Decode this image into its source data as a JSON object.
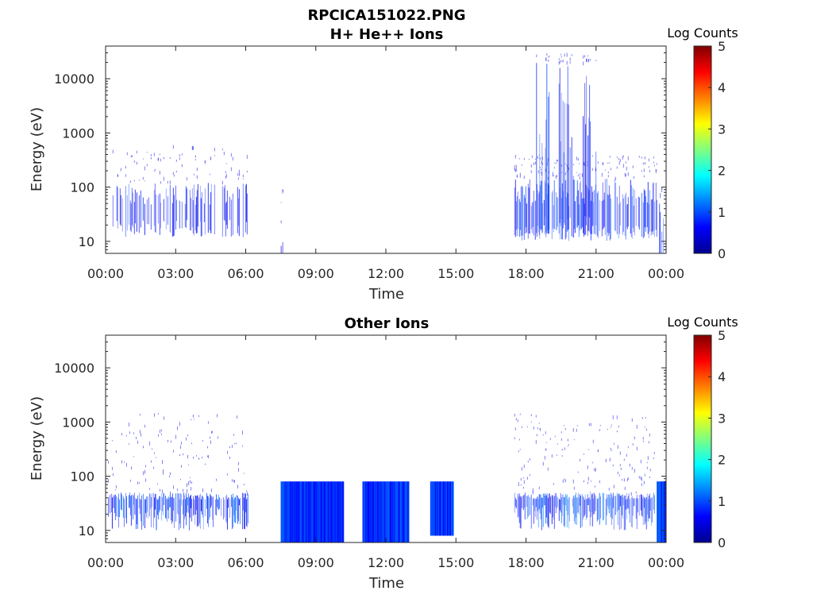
{
  "figure": {
    "title": "RPCICA151022.PNG"
  },
  "chart_data": [
    {
      "type": "heatmap",
      "title": "H+ He++ Ions",
      "xlabel": "Time",
      "ylabel": "Energy (eV)",
      "x_ticks": [
        "00:00",
        "03:00",
        "06:00",
        "09:00",
        "12:00",
        "15:00",
        "18:00",
        "21:00",
        "00:00"
      ],
      "x_range_hours": [
        0,
        24
      ],
      "y_scale": "log",
      "y_ticks": [
        "10",
        "100",
        "1000",
        "10000"
      ],
      "ylim": [
        6,
        40000
      ],
      "colorbar": {
        "label": "Log Counts",
        "range": [
          0,
          5
        ],
        "ticks": [
          "0",
          "1",
          "2",
          "3",
          "4",
          "5"
        ]
      },
      "activity": [
        {
          "start": 0.3,
          "end": 6.1,
          "emin": 12,
          "emax": 600,
          "core_min": 25,
          "core_max": 120,
          "level": 0.35,
          "density": 0.45
        },
        {
          "start": 7.5,
          "end": 7.6,
          "emin": 6,
          "emax": 100,
          "core_min": 6,
          "core_max": 12,
          "level": 0.3,
          "density": 0.3
        },
        {
          "start": 17.5,
          "end": 23.6,
          "emin": 10,
          "emax": 400,
          "core_min": 20,
          "core_max": 150,
          "level": 0.5,
          "density": 0.7
        },
        {
          "start": 18.4,
          "end": 19.0,
          "emin": 10,
          "emax": 30000,
          "core_min": 30,
          "core_max": 20000,
          "level": 0.5,
          "density": 0.6
        },
        {
          "start": 19.4,
          "end": 20.0,
          "emin": 10,
          "emax": 30000,
          "core_min": 30,
          "core_max": 20000,
          "level": 0.5,
          "density": 0.6
        },
        {
          "start": 20.4,
          "end": 21.0,
          "emin": 10,
          "emax": 30000,
          "core_min": 30,
          "core_max": 20000,
          "level": 0.5,
          "density": 0.6
        },
        {
          "start": 23.7,
          "end": 23.9,
          "emin": 6,
          "emax": 150,
          "core_min": 6,
          "core_max": 60,
          "level": 0.6,
          "density": 0.6
        }
      ]
    },
    {
      "type": "heatmap",
      "title": "Other Ions",
      "xlabel": "Time",
      "ylabel": "Energy (eV)",
      "x_ticks": [
        "00:00",
        "03:00",
        "06:00",
        "09:00",
        "12:00",
        "15:00",
        "18:00",
        "21:00",
        "00:00"
      ],
      "x_range_hours": [
        0,
        24
      ],
      "y_scale": "log",
      "y_ticks": [
        "10",
        "100",
        "1000",
        "10000"
      ],
      "ylim": [
        6,
        40000
      ],
      "colorbar": {
        "label": "Log Counts",
        "range": [
          0,
          5
        ],
        "ticks": [
          "0",
          "1",
          "2",
          "3",
          "4",
          "5"
        ]
      },
      "activity": [
        {
          "start": 0.1,
          "end": 6.1,
          "emin": 10,
          "emax": 1500,
          "core_min": 30,
          "core_max": 50,
          "level": 0.55,
          "density": 0.8
        },
        {
          "start": 7.5,
          "end": 10.2,
          "emin": 6,
          "emax": 80,
          "core_min": 6,
          "core_max": 80,
          "level": 0.9,
          "density": 1.0,
          "solid": true
        },
        {
          "start": 11.0,
          "end": 13.0,
          "emin": 6,
          "emax": 80,
          "core_min": 6,
          "core_max": 80,
          "level": 0.85,
          "density": 1.0,
          "solid": true
        },
        {
          "start": 13.9,
          "end": 14.9,
          "emin": 8,
          "emax": 80,
          "core_min": 8,
          "core_max": 80,
          "level": 0.85,
          "density": 1.0,
          "solid": true
        },
        {
          "start": 17.5,
          "end": 23.5,
          "emin": 10,
          "emax": 1500,
          "core_min": 30,
          "core_max": 50,
          "level": 0.6,
          "density": 0.85
        },
        {
          "start": 23.6,
          "end": 24.0,
          "emin": 6,
          "emax": 80,
          "core_min": 6,
          "core_max": 80,
          "level": 0.9,
          "density": 1.0,
          "solid": true
        }
      ]
    }
  ]
}
